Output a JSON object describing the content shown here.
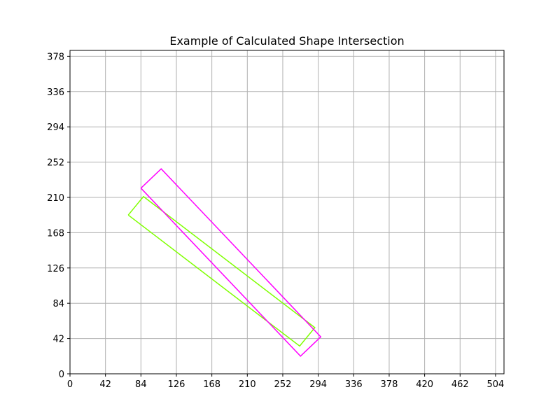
{
  "chart_data": {
    "type": "line",
    "title": "Example of Calculated Shape Intersection",
    "xlabel": "",
    "ylabel": "",
    "xlim": [
      0,
      514
    ],
    "ylim": [
      0,
      385
    ],
    "xticks": [
      0,
      42,
      84,
      126,
      168,
      210,
      252,
      294,
      336,
      378,
      420,
      462,
      504
    ],
    "yticks": [
      0,
      42,
      84,
      126,
      168,
      210,
      252,
      294,
      336,
      378
    ],
    "grid": true,
    "series": [
      {
        "color": "#7fff00",
        "points": [
          [
            69,
            189
          ],
          [
            87,
            211
          ],
          [
            290,
            55
          ],
          [
            272,
            33
          ],
          [
            69,
            189
          ]
        ]
      },
      {
        "color": "#ff00ff",
        "points": [
          [
            84,
            221
          ],
          [
            108,
            244
          ],
          [
            297,
            44
          ],
          [
            273,
            21
          ],
          [
            84,
            221
          ]
        ]
      }
    ]
  }
}
